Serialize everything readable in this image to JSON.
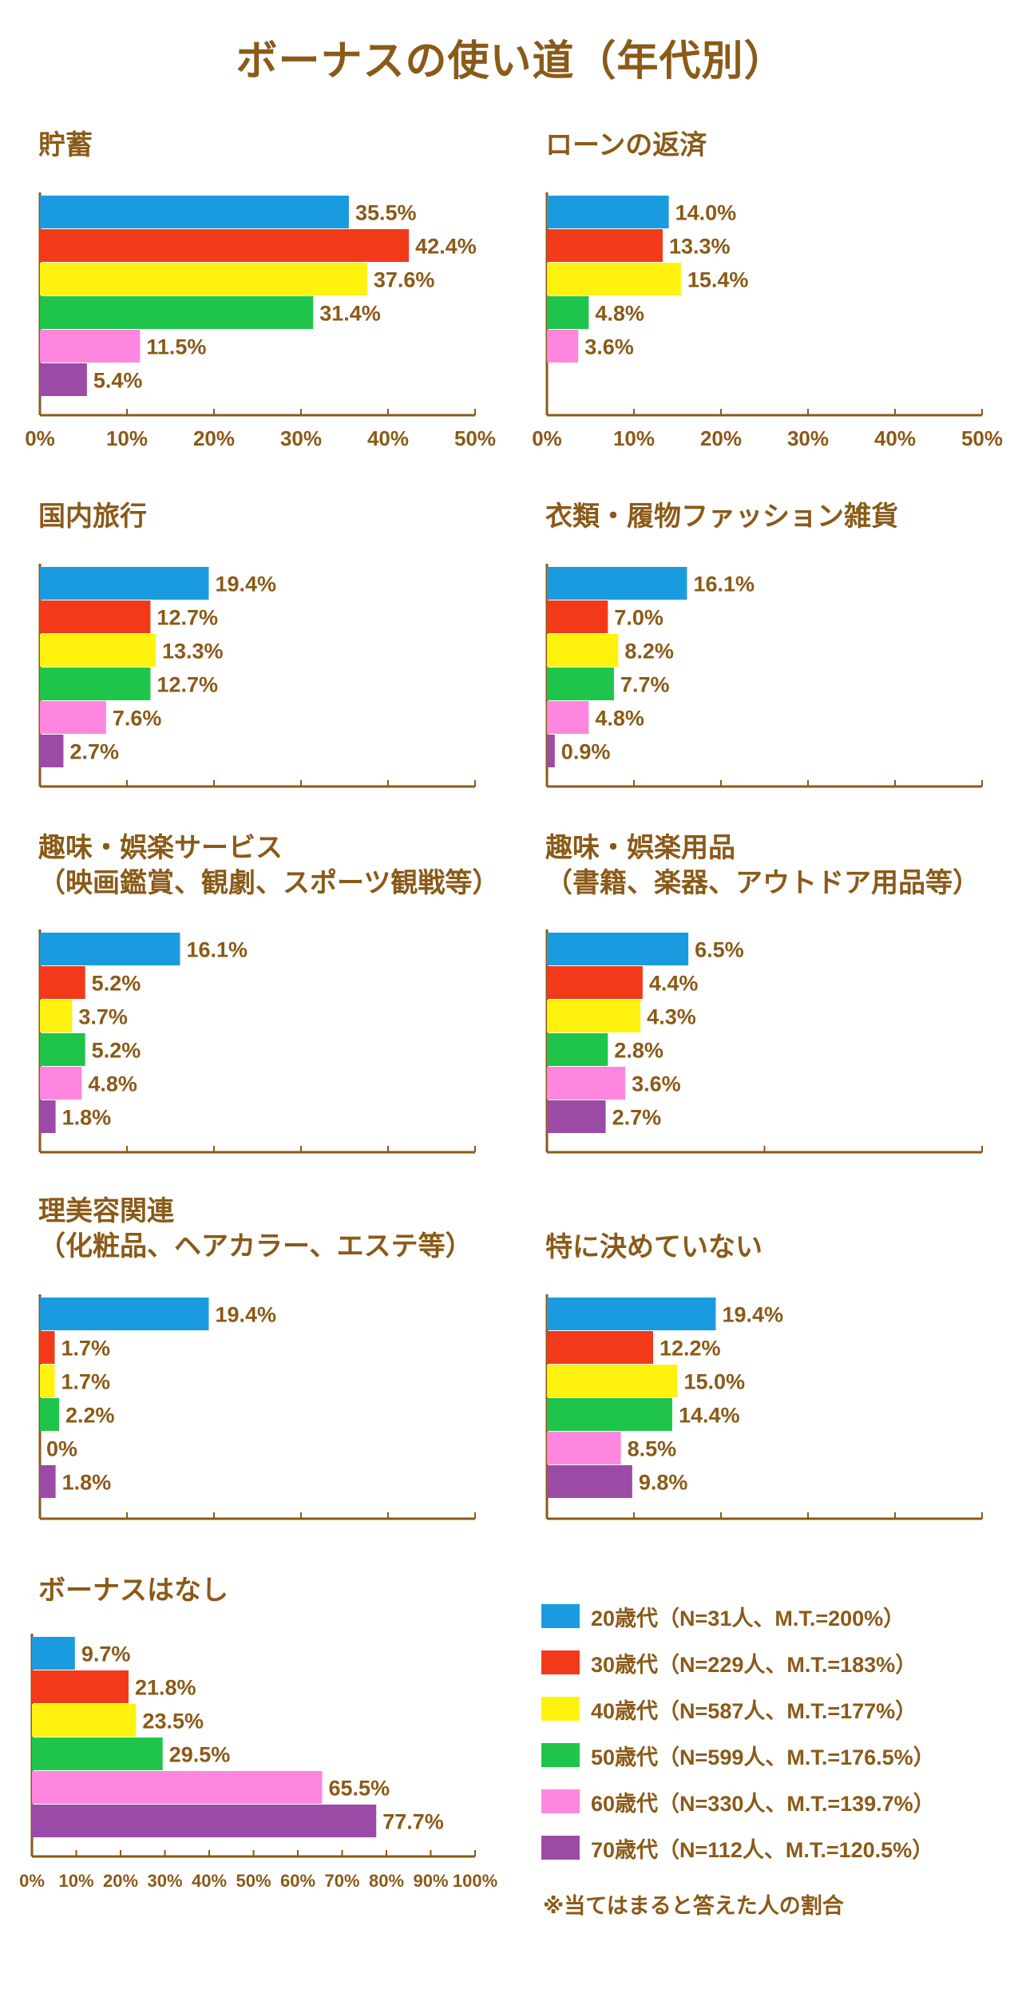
{
  "title": "ボーナスの使い道（年代別）",
  "colors": [
    "#1a9be0",
    "#f23a1a",
    "#fff20f",
    "#1ec54a",
    "#ff86de",
    "#9b4aa6"
  ],
  "text_color": "#8a5a18",
  "legend": {
    "items": [
      "20歳代（N=31人、M.T.=200%）",
      "30歳代（N=229人、M.T.=183%）",
      "40歳代（N=587人、M.T.=177%）",
      "50歳代（N=599人、M.T.=176.5%）",
      "60歳代（N=330人、M.T.=139.7%）",
      "70歳代（N=112人、M.T.=120.5%）"
    ],
    "note": "※当てはまると答えた人の割合"
  },
  "chart_data": [
    {
      "type": "bar",
      "orientation": "horizontal",
      "title": [
        "貯蓄"
      ],
      "series": [
        "20歳代",
        "30歳代",
        "40歳代",
        "50歳代",
        "60歳代",
        "70歳代"
      ],
      "values": [
        35.5,
        42.4,
        37.6,
        31.4,
        11.5,
        5.4
      ],
      "value_labels": [
        "35.5%",
        "42.4%",
        "37.6%",
        "31.4%",
        "11.5%",
        "5.4%"
      ],
      "xlim": [
        0,
        50
      ],
      "tick_labels": [
        "0%",
        "10%",
        "20%",
        "30%",
        "40%",
        "50%"
      ]
    },
    {
      "type": "bar",
      "orientation": "horizontal",
      "title": [
        "ローンの返済"
      ],
      "series": [
        "20歳代",
        "30歳代",
        "40歳代",
        "50歳代",
        "60歳代"
      ],
      "values": [
        14.0,
        13.3,
        15.4,
        4.8,
        3.6
      ],
      "value_labels": [
        "14.0%",
        "13.3%",
        "15.4%",
        "4.8%",
        "3.6%"
      ],
      "xlim": [
        0,
        50
      ],
      "tick_labels": [
        "0%",
        "10%",
        "20%",
        "30%",
        "40%",
        "50%"
      ]
    },
    {
      "type": "bar",
      "orientation": "horizontal",
      "title": [
        "国内旅行"
      ],
      "series": [
        "20歳代",
        "30歳代",
        "40歳代",
        "50歳代",
        "60歳代",
        "70歳代"
      ],
      "values": [
        19.4,
        12.7,
        13.3,
        12.7,
        7.6,
        2.7
      ],
      "value_labels": [
        "19.4%",
        "12.7%",
        "13.3%",
        "12.7%",
        "7.6%",
        "2.7%"
      ],
      "xlim": [
        0,
        50
      ],
      "tick_labels": []
    },
    {
      "type": "bar",
      "orientation": "horizontal",
      "title": [
        "衣類・履物ファッション雑貨"
      ],
      "series": [
        "20歳代",
        "30歳代",
        "40歳代",
        "50歳代",
        "60歳代",
        "70歳代"
      ],
      "values": [
        16.1,
        7.0,
        8.2,
        7.7,
        4.8,
        0.9
      ],
      "value_labels": [
        "16.1%",
        "7.0%",
        "8.2%",
        "7.7%",
        "4.8%",
        "0.9%"
      ],
      "xlim": [
        0,
        50
      ],
      "tick_labels": []
    },
    {
      "type": "bar",
      "orientation": "horizontal",
      "title": [
        "趣味・娯楽サービス",
        "（映画鑑賞、観劇、スポーツ観戦等）"
      ],
      "series": [
        "20歳代",
        "30歳代",
        "40歳代",
        "50歳代",
        "60歳代",
        "70歳代"
      ],
      "values": [
        16.1,
        5.2,
        3.7,
        5.2,
        4.8,
        1.8
      ],
      "value_labels": [
        "16.1%",
        "5.2%",
        "3.7%",
        "5.2%",
        "4.8%",
        "1.8%"
      ],
      "xlim": [
        0,
        50
      ],
      "tick_labels": []
    },
    {
      "type": "bar",
      "orientation": "horizontal",
      "title": [
        "趣味・娯楽用品",
        "（書籍、楽器、アウトドア用品等）"
      ],
      "series": [
        "20歳代",
        "30歳代",
        "40歳代",
        "50歳代",
        "60歳代",
        "70歳代"
      ],
      "values": [
        6.5,
        4.4,
        4.3,
        2.8,
        3.6,
        2.7
      ],
      "value_labels": [
        "6.5%",
        "4.4%",
        "4.3%",
        "2.8%",
        "3.6%",
        "2.7%"
      ],
      "xlim": [
        0,
        20
      ],
      "tick_labels": []
    },
    {
      "type": "bar",
      "orientation": "horizontal",
      "title": [
        "理美容関連",
        "（化粧品、ヘアカラー、エステ等）"
      ],
      "series": [
        "20歳代",
        "30歳代",
        "40歳代",
        "50歳代",
        "60歳代",
        "70歳代"
      ],
      "values": [
        19.4,
        1.7,
        1.7,
        2.2,
        0,
        1.8
      ],
      "value_labels": [
        "19.4%",
        "1.7%",
        "1.7%",
        "2.2%",
        "0%",
        "1.8%"
      ],
      "xlim": [
        0,
        50
      ],
      "tick_labels": []
    },
    {
      "type": "bar",
      "orientation": "horizontal",
      "title": [
        "特に決めていない"
      ],
      "series": [
        "20歳代",
        "30歳代",
        "40歳代",
        "50歳代",
        "60歳代",
        "70歳代"
      ],
      "values": [
        19.4,
        12.2,
        15.0,
        14.4,
        8.5,
        9.8
      ],
      "value_labels": [
        "19.4%",
        "12.2%",
        "15.0%",
        "14.4%",
        "8.5%",
        "9.8%"
      ],
      "xlim": [
        0,
        50
      ],
      "tick_labels": []
    },
    {
      "type": "bar",
      "orientation": "horizontal",
      "title": [
        "ボーナスはなし"
      ],
      "series": [
        "20歳代",
        "30歳代",
        "40歳代",
        "50歳代",
        "60歳代",
        "70歳代"
      ],
      "values": [
        9.7,
        21.8,
        23.5,
        29.5,
        65.5,
        77.7
      ],
      "value_labels": [
        "9.7%",
        "21.8%",
        "23.5%",
        "29.5%",
        "65.5%",
        "77.7%"
      ],
      "xlim": [
        0,
        100
      ],
      "tick_labels": [
        "0%",
        "10%",
        "20%",
        "30%",
        "40%",
        "50%",
        "60%",
        "70%",
        "80%",
        "90%",
        "100%"
      ]
    }
  ]
}
